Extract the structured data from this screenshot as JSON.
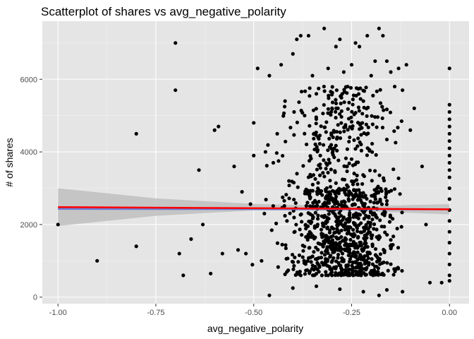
{
  "chart_data": {
    "type": "scatter",
    "title": "Scatterplot of shares vs avg_negative_polarity",
    "xlabel": "avg_negative_polarity",
    "ylabel": "# of shares",
    "xlim": [
      -1.04,
      0.05
    ],
    "ylim": [
      -180,
      7600
    ],
    "x_ticks": [
      -1.0,
      -0.75,
      -0.5,
      -0.25,
      0.0
    ],
    "x_tick_labels": [
      "-1.00",
      "-0.75",
      "-0.50",
      "-0.25",
      "0.00"
    ],
    "y_ticks": [
      0,
      2000,
      4000,
      6000
    ],
    "y_tick_labels": [
      "0",
      "2000",
      "4000",
      "6000"
    ],
    "grid": true,
    "background": "#e5e5e5",
    "point_color": "#000000",
    "points": [
      [
        -1.0,
        2000
      ],
      [
        -0.9,
        1000
      ],
      [
        -0.8,
        4500
      ],
      [
        -0.8,
        1400
      ],
      [
        -0.7,
        7000
      ],
      [
        -0.7,
        5700
      ],
      [
        -0.69,
        1200
      ],
      [
        -0.68,
        600
      ],
      [
        -0.66,
        1600
      ],
      [
        -0.64,
        3500
      ],
      [
        -0.63,
        2000
      ],
      [
        -0.61,
        650
      ],
      [
        -0.6,
        4600
      ],
      [
        -0.59,
        4700
      ],
      [
        -0.58,
        1200
      ],
      [
        -0.55,
        3600
      ],
      [
        -0.54,
        1300
      ],
      [
        -0.53,
        2900
      ],
      [
        -0.52,
        1200
      ],
      [
        -0.5,
        4800
      ],
      [
        -0.5,
        3900
      ],
      [
        -0.49,
        6300
      ],
      [
        -0.48,
        1000
      ],
      [
        -0.47,
        4000
      ],
      [
        -0.46,
        6100
      ],
      [
        -0.45,
        3700
      ],
      [
        -0.44,
        4500
      ],
      [
        -0.43,
        6400
      ],
      [
        -0.42,
        5400
      ],
      [
        -0.41,
        3200
      ],
      [
        -0.4,
        6700
      ],
      [
        -0.39,
        7100
      ],
      [
        -0.38,
        7200
      ],
      [
        -0.37,
        5000
      ],
      [
        -0.36,
        7200
      ],
      [
        -0.35,
        6100
      ],
      [
        -0.34,
        5600
      ],
      [
        -0.33,
        3900
      ],
      [
        -0.32,
        7400
      ],
      [
        -0.31,
        6300
      ],
      [
        -0.3,
        5200
      ],
      [
        -0.29,
        6900
      ],
      [
        -0.28,
        7100
      ],
      [
        -0.27,
        6200
      ],
      [
        -0.26,
        5800
      ],
      [
        -0.25,
        6400
      ],
      [
        -0.24,
        7000
      ],
      [
        -0.23,
        6900
      ],
      [
        -0.22,
        5400
      ],
      [
        -0.21,
        7200
      ],
      [
        -0.2,
        6100
      ],
      [
        -0.19,
        6500
      ],
      [
        -0.18,
        7400
      ],
      [
        -0.17,
        7200
      ],
      [
        -0.16,
        6500
      ],
      [
        -0.15,
        6200
      ],
      [
        -0.14,
        5800
      ],
      [
        -0.13,
        6300
      ],
      [
        -0.12,
        5700
      ],
      [
        -0.11,
        6400
      ],
      [
        -0.1,
        4600
      ],
      [
        -0.09,
        5200
      ],
      [
        -0.07,
        3600
      ],
      [
        -0.06,
        2000
      ],
      [
        -0.05,
        400
      ],
      [
        -0.02,
        400
      ],
      [
        0.0,
        6300
      ],
      [
        0.0,
        5300
      ],
      [
        0.0,
        5100
      ],
      [
        0.0,
        4900
      ],
      [
        0.0,
        4700
      ],
      [
        0.0,
        4500
      ],
      [
        0.0,
        4300
      ],
      [
        0.0,
        4100
      ],
      [
        0.0,
        3900
      ],
      [
        0.0,
        3700
      ],
      [
        0.0,
        3500
      ],
      [
        0.0,
        3300
      ],
      [
        0.0,
        3000
      ],
      [
        0.0,
        2700
      ],
      [
        0.0,
        2400
      ],
      [
        0.0,
        2100
      ],
      [
        0.0,
        1800
      ],
      [
        0.0,
        1500
      ],
      [
        0.0,
        1200
      ],
      [
        0.0,
        900
      ],
      [
        0.0,
        600
      ],
      [
        0.0,
        450
      ],
      [
        -0.46,
        50
      ],
      [
        -0.4,
        250
      ],
      [
        -0.34,
        300
      ],
      [
        -0.28,
        220
      ],
      [
        -0.22,
        150
      ],
      [
        -0.18,
        50
      ],
      [
        -0.16,
        200
      ],
      [
        -0.12,
        150
      ]
    ],
    "dense_cluster": {
      "x_range": [
        -0.52,
        -0.12
      ],
      "x_center": -0.27,
      "x_sd": 0.07,
      "y_min": 600,
      "y_max": 5800,
      "y_center": 1700,
      "count": 1100
    },
    "regression": {
      "x_start": -1.0,
      "x_end": 0.0,
      "y_start": 2480,
      "y_end": 2420,
      "color": "#ff0000"
    },
    "regression_alt": {
      "x_start": -1.0,
      "x_end": 0.0,
      "y_start": 2430,
      "y_end": 2420,
      "color": "#6b7bd6"
    },
    "confidence_band": {
      "x": [
        -1.0,
        -0.75,
        -0.5,
        -0.25,
        0.0
      ],
      "upper": [
        3000,
        2720,
        2570,
        2500,
        2560
      ],
      "lower": [
        1960,
        2240,
        2390,
        2380,
        2280
      ],
      "color": "#bfbfbf"
    }
  }
}
